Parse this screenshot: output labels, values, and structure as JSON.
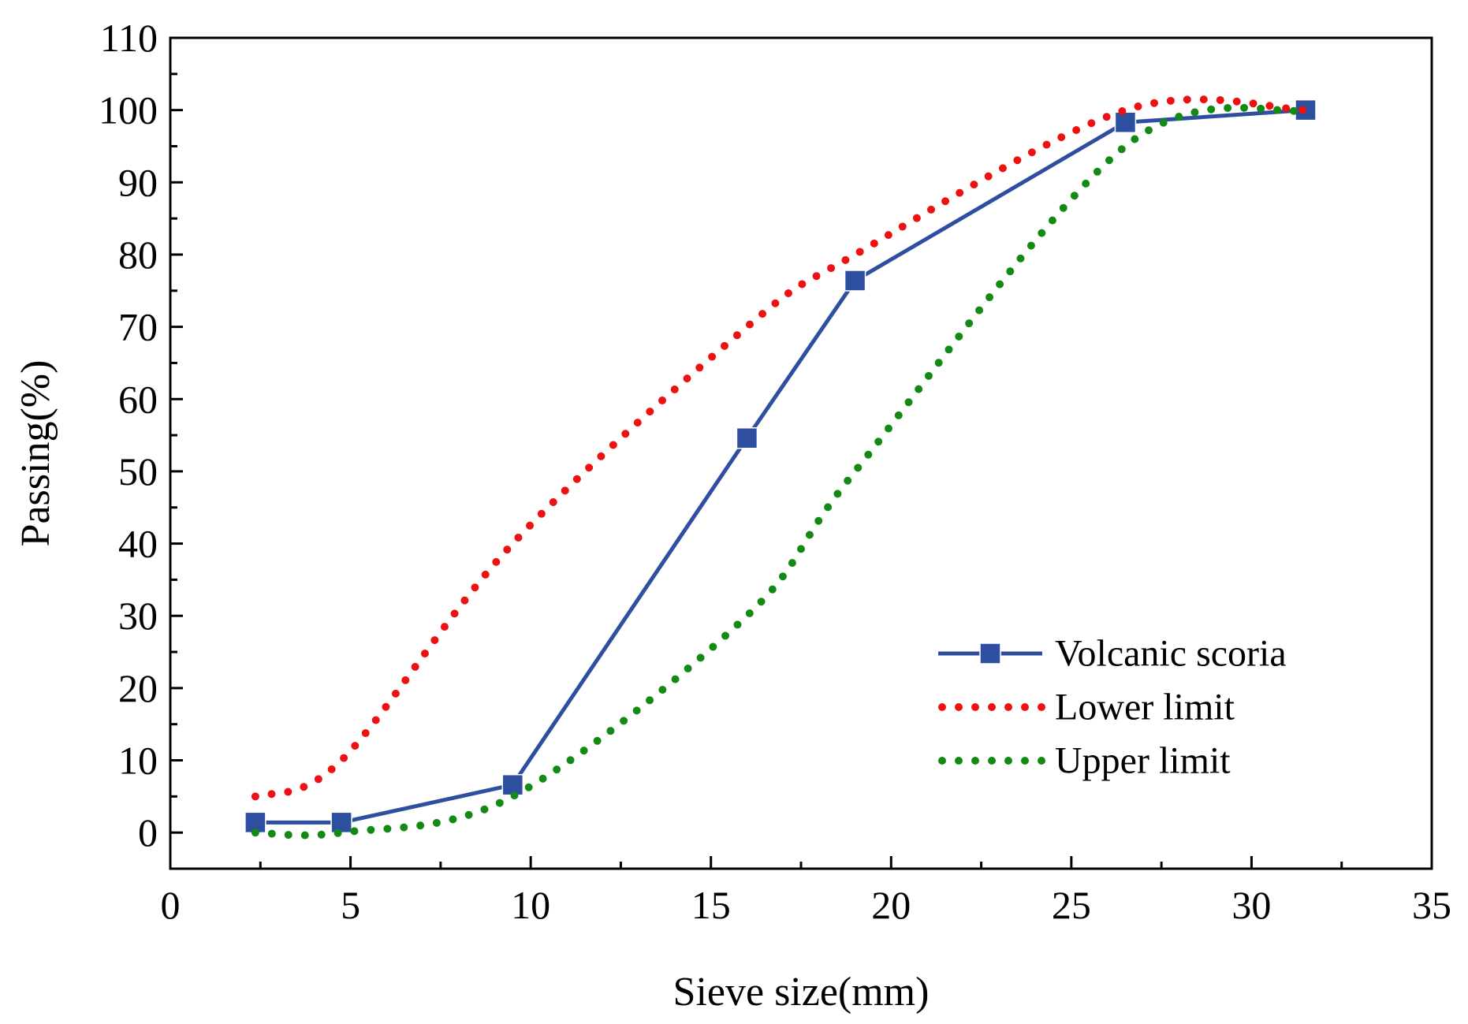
{
  "chart_data": {
    "type": "line",
    "title": "",
    "xlabel": "Sieve size(mm)",
    "ylabel": "Passing(%)",
    "xlim": [
      0,
      35
    ],
    "ylim": [
      -5,
      110
    ],
    "xticks": [
      0,
      5,
      10,
      15,
      20,
      25,
      30,
      35
    ],
    "yticks": [
      0,
      10,
      20,
      30,
      40,
      50,
      60,
      70,
      80,
      90,
      100,
      110
    ],
    "grid": false,
    "legend_position": "bottom-right",
    "series": [
      {
        "name": "Volcanic scoria",
        "style": "solid-square-markers",
        "color": "#2E4FA0",
        "x": [
          2.36,
          4.75,
          9.5,
          16,
          19,
          26.5,
          31.5
        ],
        "values": [
          1.4,
          1.4,
          6.6,
          54.6,
          76.4,
          98.3,
          100
        ]
      },
      {
        "name": "Lower limit",
        "style": "dotted-smooth",
        "color": "#EE1111",
        "x": [
          2.36,
          4.75,
          9.5,
          16,
          19,
          26.5,
          31.5
        ],
        "values": [
          5,
          10,
          40,
          70,
          80,
          100,
          100
        ]
      },
      {
        "name": "Upper limit",
        "style": "dotted-smooth",
        "color": "#138A13",
        "x": [
          2.36,
          4.75,
          9.5,
          16,
          19,
          26.5,
          31.5
        ],
        "values": [
          0,
          0,
          5,
          30,
          50,
          95,
          100
        ]
      }
    ]
  }
}
